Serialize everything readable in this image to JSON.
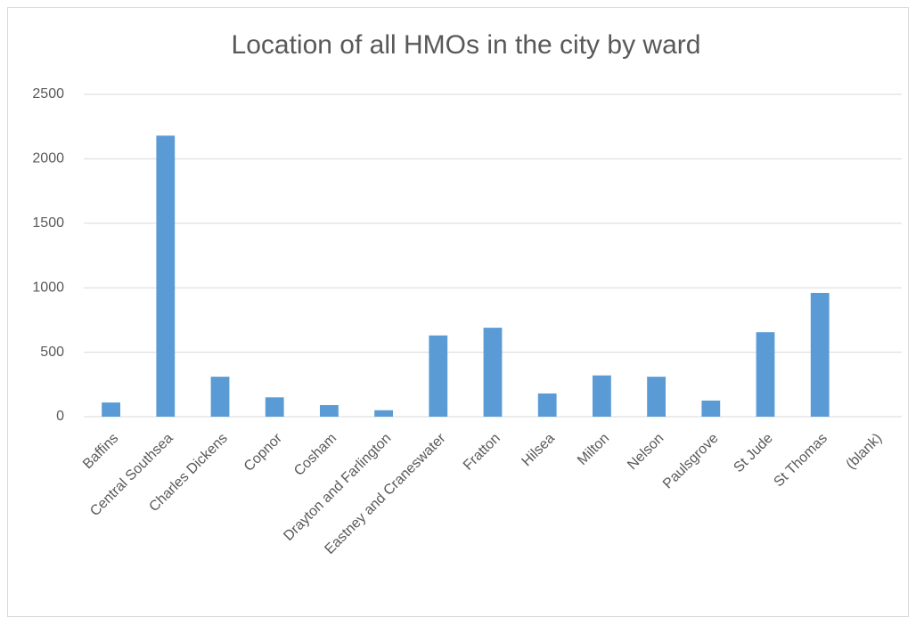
{
  "chart_data": {
    "type": "bar",
    "title": "Location of all HMOs in the city by ward",
    "categories": [
      "Baffins",
      "Central Southsea",
      "Charles Dickens",
      "Copnor",
      "Cosham",
      "Drayton and Farlington",
      "Eastney and Craneswater",
      "Fratton",
      "Hilsea",
      "Milton",
      "Nelson",
      "Paulsgrove",
      "St Jude",
      "St Thomas",
      "(blank)"
    ],
    "values": [
      110,
      2180,
      310,
      150,
      90,
      50,
      630,
      690,
      180,
      320,
      310,
      125,
      655,
      960,
      null
    ],
    "color": "#5b9bd5",
    "ylim": [
      0,
      2500
    ],
    "yticks": [
      0,
      500,
      1000,
      1500,
      2000,
      2500
    ],
    "grid": true
  }
}
